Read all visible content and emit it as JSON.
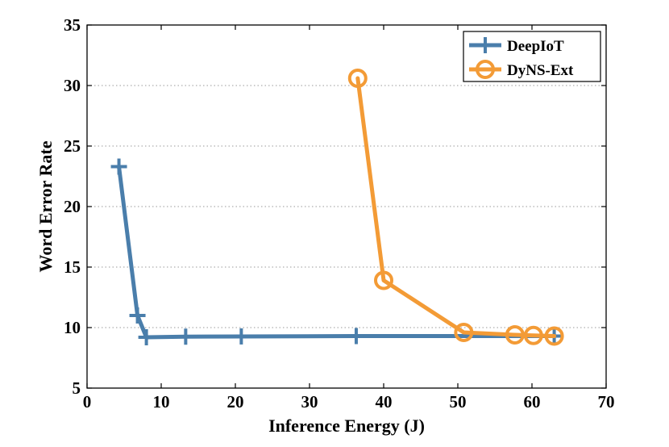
{
  "chart_data": {
    "type": "line",
    "title": "",
    "xlabel": "Inference Energy (J)",
    "ylabel": "Word Error Rate",
    "xlim": [
      0,
      70
    ],
    "ylim": [
      5,
      35
    ],
    "xticks": [
      0,
      10,
      20,
      30,
      40,
      50,
      60,
      70
    ],
    "yticks": [
      5,
      10,
      15,
      20,
      25,
      30,
      35
    ],
    "grid": "horizontal-dotted",
    "legend_position": "top-right",
    "series": [
      {
        "name": "DeepIoT",
        "color": "#4a7eab",
        "marker": "plus",
        "x": [
          4.3,
          6.8,
          8.0,
          13.3,
          20.8,
          36.3,
          63.0
        ],
        "y": [
          23.3,
          11.0,
          9.2,
          9.25,
          9.27,
          9.3,
          9.3
        ]
      },
      {
        "name": "DyNS-Ext",
        "color": "#f39b36",
        "marker": "circle",
        "x": [
          36.5,
          40.0,
          50.8,
          57.7,
          60.2,
          63.0
        ],
        "y": [
          30.6,
          13.9,
          9.6,
          9.4,
          9.35,
          9.3
        ]
      }
    ]
  }
}
